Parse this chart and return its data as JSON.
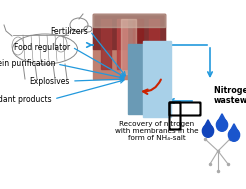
{
  "bg_color": "#ffffff",
  "arrow_color": "#2299dd",
  "title_text": "Recovery of nitrogen\nwith membranes in the\nform of NH₄-salt",
  "nitrogen_rich_text": "Nitrogen rich\nwastewater",
  "products": [
    "Fertilizers",
    "Food regulator",
    "Protein purification",
    "Explosives",
    "Fire retardant products"
  ],
  "membrane_color1": "#6a9ab5",
  "membrane_color2": "#a8d0e8",
  "text_fontsize": 5.5,
  "title_fontsize": 5.2,
  "nitrogen_fontsize": 5.8,
  "cow_color": "#aaaaaa",
  "slaughter_bg": "#b04040",
  "slaughter_highlight": "#d08080"
}
